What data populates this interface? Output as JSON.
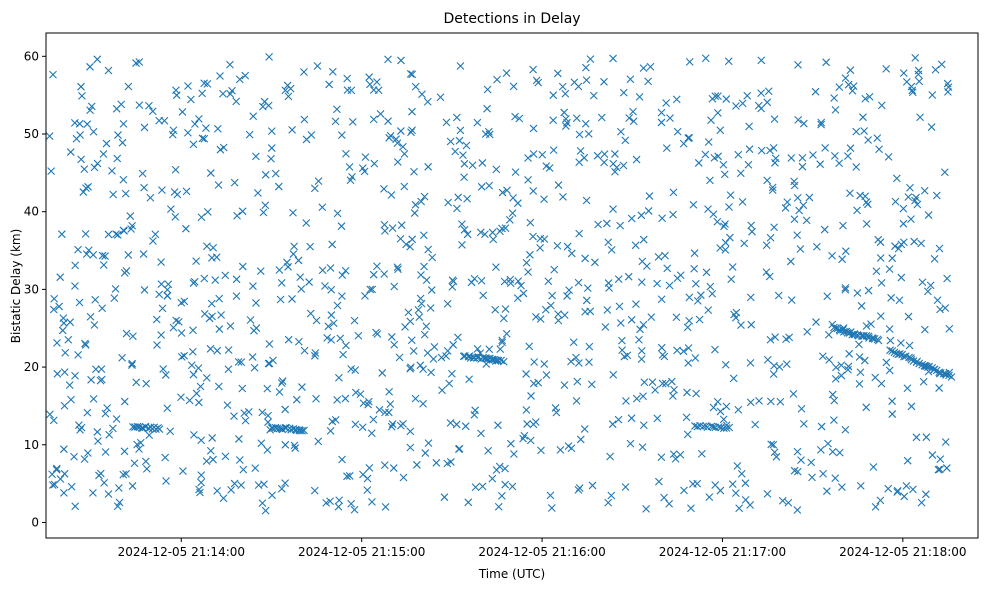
{
  "chart_data": {
    "type": "scatter",
    "title": "Detections in Delay",
    "xlabel": "Time (UTC)",
    "ylabel": "Bistatic Delay (km)",
    "marker": "x",
    "color": "#1f77b4",
    "x_unit": "seconds since 2024-12-05 21:13:30",
    "xlim": [
      -15,
      295
    ],
    "ylim": [
      -2,
      63
    ],
    "x_ticks": [
      {
        "value": 30,
        "label": "2024-12-05 21:14:00"
      },
      {
        "value": 90,
        "label": "2024-12-05 21:15:00"
      },
      {
        "value": 150,
        "label": "2024-12-05 21:16:00"
      },
      {
        "value": 210,
        "label": "2024-12-05 21:17:00"
      },
      {
        "value": 270,
        "label": "2024-12-05 21:18:00"
      }
    ],
    "y_ticks": [
      0,
      10,
      20,
      30,
      40,
      50,
      60
    ],
    "tracks": [
      {
        "t_start": 14,
        "t_end": 23,
        "d_start": 12.3,
        "d_end": 12.1,
        "n": 14
      },
      {
        "t_start": 60,
        "t_end": 71,
        "d_start": 12.2,
        "d_end": 11.9,
        "n": 18
      },
      {
        "t_start": 124,
        "t_end": 137,
        "d_start": 21.4,
        "d_end": 20.8,
        "n": 22
      },
      {
        "t_start": 201,
        "t_end": 212,
        "d_start": 12.4,
        "d_end": 12.2,
        "n": 14
      },
      {
        "t_start": 247,
        "t_end": 262,
        "d_start": 25.0,
        "d_end": 23.5,
        "n": 26
      },
      {
        "t_start": 266,
        "t_end": 286,
        "d_start": 22.2,
        "d_end": 18.7,
        "n": 32
      }
    ],
    "clutter": {
      "count": 1250,
      "t_range": [
        -14,
        286
      ],
      "d_range": [
        1.5,
        60
      ]
    }
  }
}
